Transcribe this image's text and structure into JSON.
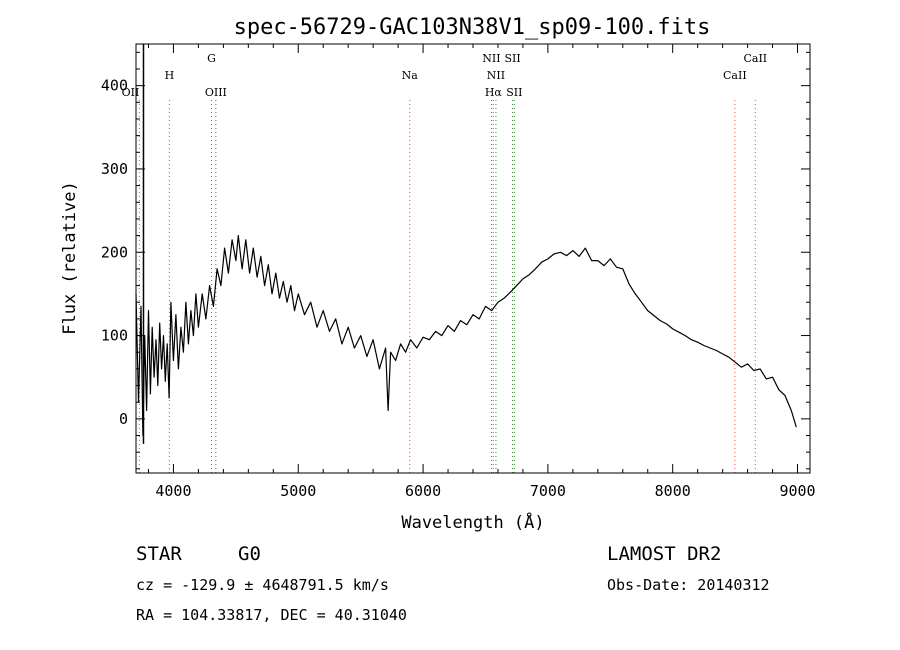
{
  "chart_data": {
    "type": "line",
    "title": "spec-56729-GAC103N38V1_sp09-100.fits",
    "xlabel": "Wavelength (Å)",
    "ylabel": "Flux (relative)",
    "xlim": [
      3700,
      9100
    ],
    "ylim": [
      -65,
      450
    ],
    "xticks": [
      4000,
      5000,
      6000,
      7000,
      8000,
      9000
    ],
    "yticks": [
      0,
      100,
      200,
      300,
      400
    ],
    "grid": false,
    "series": [
      {
        "color": "#000000",
        "points": [
          [
            3700,
            150
          ],
          [
            3720,
            20
          ],
          [
            3740,
            135
          ],
          [
            3755,
            -20
          ],
          [
            3770,
            100
          ],
          [
            3785,
            10
          ],
          [
            3800,
            130
          ],
          [
            3815,
            30
          ],
          [
            3830,
            110
          ],
          [
            3845,
            50
          ],
          [
            3860,
            95
          ],
          [
            3875,
            40
          ],
          [
            3890,
            115
          ],
          [
            3905,
            60
          ],
          [
            3920,
            100
          ],
          [
            3935,
            45
          ],
          [
            3950,
            90
          ],
          [
            3965,
            25
          ],
          [
            3980,
            140
          ],
          [
            4000,
            70
          ],
          [
            4020,
            125
          ],
          [
            4040,
            60
          ],
          [
            4060,
            110
          ],
          [
            4080,
            80
          ],
          [
            4100,
            140
          ],
          [
            4120,
            90
          ],
          [
            4140,
            130
          ],
          [
            4160,
            100
          ],
          [
            4180,
            150
          ],
          [
            4200,
            110
          ],
          [
            4230,
            150
          ],
          [
            4260,
            120
          ],
          [
            4290,
            160
          ],
          [
            4320,
            135
          ],
          [
            4350,
            180
          ],
          [
            4380,
            160
          ],
          [
            4410,
            205
          ],
          [
            4440,
            175
          ],
          [
            4470,
            215
          ],
          [
            4500,
            190
          ],
          [
            4520,
            220
          ],
          [
            4550,
            180
          ],
          [
            4580,
            215
          ],
          [
            4610,
            175
          ],
          [
            4640,
            205
          ],
          [
            4670,
            170
          ],
          [
            4700,
            195
          ],
          [
            4730,
            160
          ],
          [
            4760,
            185
          ],
          [
            4790,
            150
          ],
          [
            4820,
            175
          ],
          [
            4850,
            145
          ],
          [
            4880,
            165
          ],
          [
            4910,
            140
          ],
          [
            4940,
            160
          ],
          [
            4970,
            130
          ],
          [
            5000,
            150
          ],
          [
            5050,
            125
          ],
          [
            5100,
            140
          ],
          [
            5150,
            110
          ],
          [
            5200,
            130
          ],
          [
            5250,
            105
          ],
          [
            5300,
            120
          ],
          [
            5350,
            90
          ],
          [
            5400,
            110
          ],
          [
            5450,
            85
          ],
          [
            5500,
            100
          ],
          [
            5550,
            75
          ],
          [
            5600,
            95
          ],
          [
            5650,
            60
          ],
          [
            5700,
            85
          ],
          [
            5720,
            10
          ],
          [
            5740,
            80
          ],
          [
            5780,
            70
          ],
          [
            5820,
            90
          ],
          [
            5860,
            80
          ],
          [
            5900,
            95
          ],
          [
            5950,
            85
          ],
          [
            6000,
            98
          ],
          [
            6050,
            95
          ],
          [
            6100,
            105
          ],
          [
            6150,
            100
          ],
          [
            6200,
            112
          ],
          [
            6250,
            105
          ],
          [
            6300,
            118
          ],
          [
            6350,
            113
          ],
          [
            6400,
            125
          ],
          [
            6450,
            120
          ],
          [
            6500,
            135
          ],
          [
            6550,
            130
          ],
          [
            6600,
            140
          ],
          [
            6650,
            145
          ],
          [
            6700,
            152
          ],
          [
            6750,
            160
          ],
          [
            6800,
            168
          ],
          [
            6850,
            173
          ],
          [
            6900,
            180
          ],
          [
            6950,
            188
          ],
          [
            7000,
            192
          ],
          [
            7050,
            198
          ],
          [
            7100,
            200
          ],
          [
            7150,
            196
          ],
          [
            7200,
            202
          ],
          [
            7250,
            195
          ],
          [
            7300,
            205
          ],
          [
            7350,
            190
          ],
          [
            7400,
            190
          ],
          [
            7450,
            184
          ],
          [
            7500,
            192
          ],
          [
            7550,
            182
          ],
          [
            7600,
            180
          ],
          [
            7650,
            162
          ],
          [
            7700,
            150
          ],
          [
            7750,
            140
          ],
          [
            7800,
            130
          ],
          [
            7850,
            124
          ],
          [
            7900,
            118
          ],
          [
            7950,
            114
          ],
          [
            8000,
            108
          ],
          [
            8050,
            104
          ],
          [
            8100,
            100
          ],
          [
            8150,
            95
          ],
          [
            8200,
            92
          ],
          [
            8250,
            88
          ],
          [
            8300,
            85
          ],
          [
            8350,
            82
          ],
          [
            8400,
            78
          ],
          [
            8450,
            74
          ],
          [
            8500,
            68
          ],
          [
            8550,
            62
          ],
          [
            8600,
            66
          ],
          [
            8650,
            58
          ],
          [
            8700,
            60
          ],
          [
            8750,
            48
          ],
          [
            8800,
            50
          ],
          [
            8850,
            35
          ],
          [
            8900,
            28
          ],
          [
            8950,
            10
          ],
          [
            8990,
            -10
          ]
        ]
      }
    ],
    "spectral_lines": [
      {
        "label": "OII",
        "wavelength": 3727,
        "row": "low",
        "anchor": "end",
        "color": "#e05050"
      },
      {
        "label": "H",
        "wavelength": 3968,
        "row": "mid",
        "anchor": "middle",
        "color": "#e05050"
      },
      {
        "label": "G",
        "wavelength": 4305,
        "row": "top",
        "anchor": "middle",
        "color": "#3a8a3a"
      },
      {
        "label": "OIII",
        "wavelength": 4340,
        "row": "low",
        "anchor": "middle",
        "color": "#3a8a3a"
      },
      {
        "label": "Na",
        "wavelength": 5893,
        "row": "mid",
        "anchor": "middle",
        "color": "#e05050"
      },
      {
        "label": "NII",
        "wavelength": 6548,
        "row": "top",
        "anchor": "middle",
        "color": "#3a8a3a"
      },
      {
        "label": "NII",
        "wavelength": 6584,
        "row": "mid",
        "anchor": "middle",
        "color": "#3a8a3a"
      },
      {
        "label": "Hα",
        "wavelength": 6563,
        "row": "low",
        "anchor": "middle",
        "color": "#e05050"
      },
      {
        "label": "SII",
        "wavelength": 6717,
        "row": "top",
        "anchor": "middle",
        "color": "#3a8a3a"
      },
      {
        "label": "SII",
        "wavelength": 6731,
        "row": "low",
        "anchor": "middle",
        "color": "#3a8a3a"
      },
      {
        "label": "CaII",
        "wavelength": 8498,
        "row": "mid",
        "anchor": "middle",
        "color": "#e05050"
      },
      {
        "label": "CaII",
        "wavelength": 8662,
        "row": "top",
        "anchor": "middle",
        "color": "#e05050"
      }
    ]
  },
  "info": {
    "object_class": "STAR",
    "subclass": "G0",
    "survey": "LAMOST DR2",
    "cz": "cz = -129.9 ± 4648791.5 km/s",
    "obs_date": "Obs-Date: 20140312",
    "coords": "RA = 104.33817, DEC =  40.31040"
  }
}
